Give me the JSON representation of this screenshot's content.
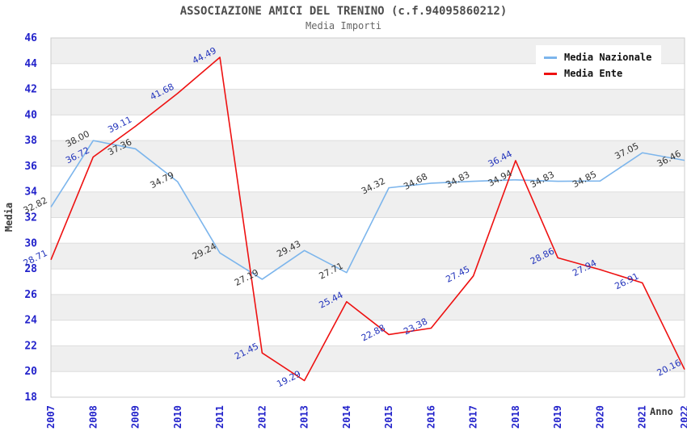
{
  "header": {
    "title": "ASSOCIAZIONE AMICI DEL TRENINO (c.f.94095860212)",
    "subtitle": "Media Importi"
  },
  "chart_data": {
    "type": "line",
    "title": "ASSOCIAZIONE AMICI DEL TRENINO (c.f.94095860212)",
    "subtitle": "Media Importi",
    "xlabel": "Anno",
    "ylabel": "Media",
    "ylim": [
      18,
      46
    ],
    "ytick_step": 2,
    "grid": true,
    "legend_position": "top-right",
    "categories": [
      "2007",
      "2008",
      "2009",
      "2010",
      "2011",
      "2012",
      "2013",
      "2014",
      "2015",
      "2016",
      "2017",
      "2018",
      "2019",
      "2020",
      "2021",
      "2022"
    ],
    "series": [
      {
        "name": "Media Nazionale",
        "color": "#7cb5ec",
        "label_color": "#333333",
        "values": [
          32.82,
          38.0,
          37.36,
          34.79,
          29.24,
          27.19,
          29.43,
          27.71,
          34.32,
          34.68,
          34.83,
          34.94,
          34.83,
          34.85,
          37.05,
          36.46
        ]
      },
      {
        "name": "Media Ente",
        "color": "#ee1111",
        "label_color": "#2233bb",
        "values": [
          28.71,
          36.72,
          39.11,
          41.68,
          44.49,
          21.45,
          19.29,
          25.44,
          22.88,
          23.38,
          27.45,
          36.44,
          28.86,
          27.94,
          26.91,
          20.16
        ]
      }
    ],
    "colors": {
      "tick_label": "#2323cb",
      "band": "#efefef",
      "gridline": "#dddddd",
      "plot_border": "#cccccc"
    }
  }
}
